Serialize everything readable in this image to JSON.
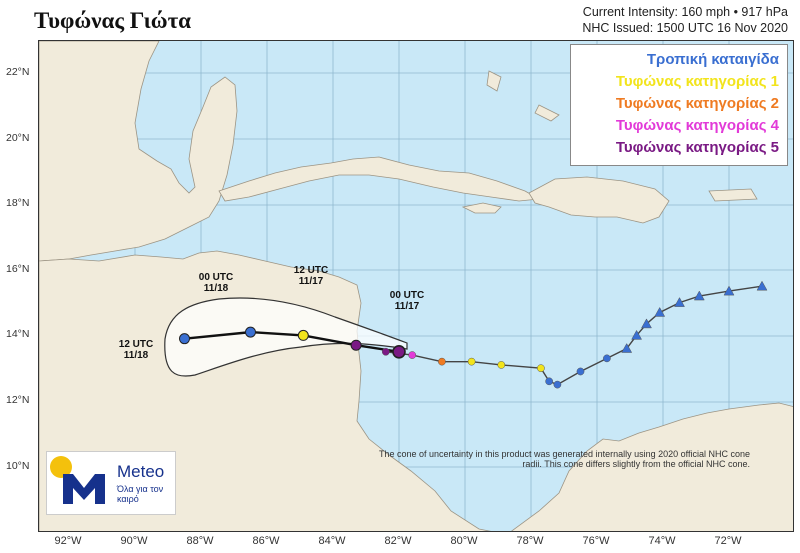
{
  "title": "Τυφώνας Γιώτα",
  "info": {
    "intensity": "Current Intensity: 160 mph • 917 hPa",
    "issued": "NHC Issued: 1500 UTC 16 Nov 2020"
  },
  "legend": [
    {
      "label": "Τροπική καταιγίδα",
      "color": "#3a6fd1"
    },
    {
      "label": "Τυφώνας κατηγορίας 1",
      "color": "#f2e41c"
    },
    {
      "label": "Τυφώνας κατηγορίας 2",
      "color": "#ef7b22"
    },
    {
      "label": "Τυφώνας κατηγορίας 4",
      "color": "#e23ad8"
    },
    {
      "label": "Τυφώνας κατηγορίας 5",
      "color": "#7a1a84"
    }
  ],
  "x_ticks": [
    "92°W",
    "90°W",
    "88°W",
    "86°W",
    "84°W",
    "82°W",
    "80°W",
    "78°W",
    "76°W",
    "74°W",
    "72°W"
  ],
  "y_ticks": [
    "22°N",
    "20°N",
    "18°N",
    "16°N",
    "14°N",
    "12°N",
    "10°N"
  ],
  "annotations": [
    {
      "line1": "00 UTC",
      "line2": "11/18"
    },
    {
      "line1": "12 UTC",
      "line2": "11/17"
    },
    {
      "line1": "00 UTC",
      "line2": "11/17"
    },
    {
      "line1": "12 UTC",
      "line2": "11/18"
    }
  ],
  "logo": {
    "brand": "Meteo",
    "tagline": "Όλα για τον καιρό"
  },
  "disclaimer": "The cone of uncertainty in this product was generated internally using 2020 official NHC cone radii. This cone differs slightly from the official NHC cone.",
  "track": {
    "past": [
      {
        "lon": -71.0,
        "lat": 15.5,
        "cat": "ts"
      },
      {
        "lon": -72.0,
        "lat": 15.35,
        "cat": "ts"
      },
      {
        "lon": -72.9,
        "lat": 15.2,
        "cat": "ts"
      },
      {
        "lon": -73.5,
        "lat": 15.0,
        "cat": "ts"
      },
      {
        "lon": -74.1,
        "lat": 14.7,
        "cat": "ts"
      },
      {
        "lon": -74.5,
        "lat": 14.35,
        "cat": "ts"
      },
      {
        "lon": -74.8,
        "lat": 14.0,
        "cat": "ts"
      },
      {
        "lon": -75.1,
        "lat": 13.6,
        "cat": "ts"
      },
      {
        "lon": -75.7,
        "lat": 13.3,
        "cat": "ts"
      },
      {
        "lon": -76.5,
        "lat": 12.9,
        "cat": "ts"
      },
      {
        "lon": -77.2,
        "lat": 12.5,
        "cat": "ts"
      },
      {
        "lon": -77.45,
        "lat": 12.6,
        "cat": "ts"
      },
      {
        "lon": -77.7,
        "lat": 13.0,
        "cat": "c1"
      },
      {
        "lon": -78.9,
        "lat": 13.1,
        "cat": "c1"
      },
      {
        "lon": -79.8,
        "lat": 13.2,
        "cat": "c1"
      },
      {
        "lon": -80.7,
        "lat": 13.2,
        "cat": "c2"
      },
      {
        "lon": -81.6,
        "lat": 13.4,
        "cat": "c4"
      },
      {
        "lon": -82.4,
        "lat": 13.5,
        "cat": "c5"
      }
    ],
    "current": {
      "lon": -82.0,
      "lat": 13.5,
      "cat": "c5"
    },
    "forecast": [
      {
        "lon": -83.3,
        "lat": 13.7,
        "cat": "c5"
      },
      {
        "lon": -84.9,
        "lat": 14.0,
        "cat": "c1"
      },
      {
        "lon": -86.5,
        "lat": 14.1,
        "cat": "ts"
      },
      {
        "lon": -88.5,
        "lat": 13.9,
        "cat": "ts"
      }
    ]
  },
  "colors": {
    "ts": "#3a6fd1",
    "c1": "#f2e41c",
    "c2": "#ef7b22",
    "c4": "#e23ad8",
    "c5": "#7a1a84"
  }
}
